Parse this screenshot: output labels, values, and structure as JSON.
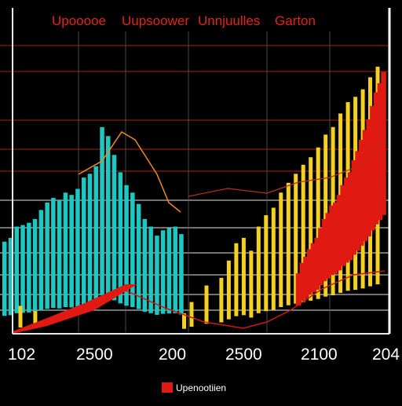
{
  "colors": {
    "background": "#000000",
    "grid_major": "#8a1a10",
    "grid_minor": "#d8d8d8",
    "title": "#e0261a",
    "tick_text": "#ffffff",
    "legend_swatch": "#e01a12",
    "legend_text": "#ffffff"
  },
  "chart_data": {
    "type": "bar",
    "title_parts": [
      "Upooooe",
      "Uupsoower",
      "Unnjuulles",
      "Garton"
    ],
    "x_ticks": [
      "102",
      "2500",
      "200",
      "2500",
      "2100",
      "204"
    ],
    "legend_label": "Upenootiien",
    "grid": true,
    "ylim": [
      0,
      430
    ],
    "series": [
      {
        "color": "#1ec8c2",
        "values": [
          120,
          125,
          140,
          142,
          145,
          150,
          162,
          172,
          178,
          175,
          185,
          182,
          190,
          205,
          210,
          220,
          272,
          260,
          235,
          212,
          195,
          185,
          170,
          150,
          140,
          128,
          135,
          138,
          140,
          130
        ]
      },
      {
        "color": "#f4d020",
        "values": [
          0,
          35,
          0,
          28,
          0,
          0,
          0,
          0,
          0,
          0,
          0,
          0,
          0,
          0,
          0,
          0,
          0,
          0,
          0,
          0,
          0,
          0,
          0,
          25,
          40,
          0,
          62,
          0,
          72,
          95,
          118,
          125,
          108,
          140,
          155,
          165,
          185,
          198,
          210,
          222,
          232,
          245,
          262,
          272,
          290,
          305,
          312,
          322,
          338,
          352
        ]
      },
      {
        "color": "#e01a12",
        "values": [
          0,
          0,
          0,
          0,
          0,
          0,
          0,
          0,
          0,
          0,
          0,
          0,
          0,
          0,
          0,
          0,
          0,
          0,
          0,
          0,
          0,
          0,
          0,
          0,
          0,
          0,
          0,
          0,
          0,
          78,
          92,
          100,
          110,
          118,
          125,
          138,
          150,
          158,
          168,
          172,
          182,
          195,
          205,
          212,
          228,
          240,
          255,
          268,
          282,
          300,
          318,
          330,
          345
        ]
      }
    ]
  }
}
